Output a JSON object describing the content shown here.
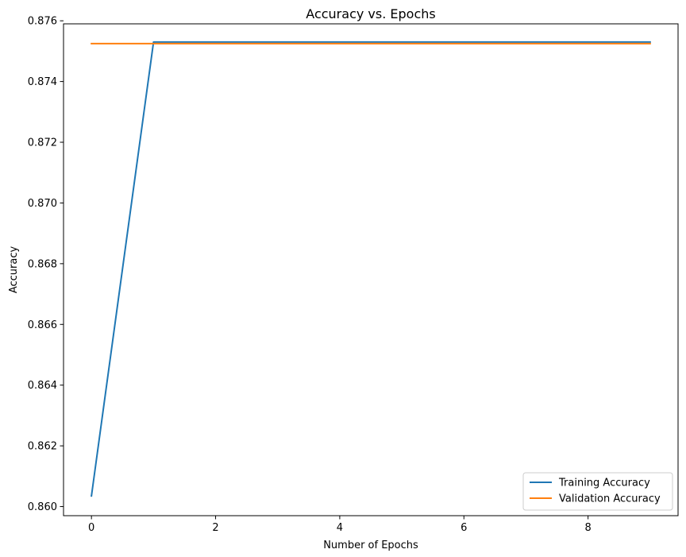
{
  "chart_data": {
    "type": "line",
    "title": "Accuracy vs. Epochs",
    "xlabel": "Number of Epochs",
    "ylabel": "Accuracy",
    "x": [
      0,
      1,
      2,
      3,
      4,
      5,
      6,
      7,
      8,
      9
    ],
    "xlim": [
      -0.45,
      9.45
    ],
    "ylim": [
      0.8597,
      0.8759
    ],
    "xticks": [
      0,
      2,
      4,
      6,
      8
    ],
    "xtick_labels": [
      "0",
      "2",
      "4",
      "6",
      "8"
    ],
    "yticks": [
      0.86,
      0.862,
      0.864,
      0.866,
      0.868,
      0.87,
      0.872,
      0.874,
      0.876
    ],
    "ytick_labels": [
      "0.860",
      "0.862",
      "0.864",
      "0.866",
      "0.868",
      "0.870",
      "0.872",
      "0.874",
      "0.876"
    ],
    "grid": false,
    "legend_position": "bottom-right",
    "series": [
      {
        "name": "Training Accuracy",
        "color": "#1f77b4",
        "values": [
          0.86035,
          0.8753,
          0.8753,
          0.8753,
          0.8753,
          0.8753,
          0.8753,
          0.8753,
          0.8753,
          0.8753
        ]
      },
      {
        "name": "Validation Accuracy",
        "color": "#ff7f0e",
        "values": [
          0.87525,
          0.87525,
          0.87525,
          0.87525,
          0.87525,
          0.87525,
          0.87525,
          0.87525,
          0.87525,
          0.87525
        ]
      }
    ]
  }
}
